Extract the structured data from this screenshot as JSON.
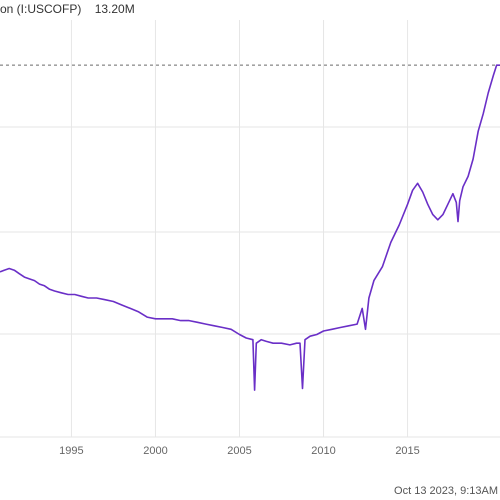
{
  "legend": {
    "series_label": "on (I:USCOFP)",
    "last_value": "13.20M"
  },
  "timestamp": "Oct 13 2023, 9:13AM",
  "colors": {
    "series": "#6a2fc7",
    "grid": "#e6e6e6",
    "reference_line": "#6a6a6a",
    "axis_text": "#666666"
  },
  "chart_data": {
    "type": "line",
    "title": "",
    "xlabel": "",
    "ylabel": "",
    "x_ticks": [
      "1995",
      "2000",
      "2005",
      "2010",
      "2015"
    ],
    "xlim": [
      1990.75,
      2020.5
    ],
    "ylim": [
      2.5,
      14.5
    ],
    "reference_line_value": 13.2,
    "grid": true,
    "series": [
      {
        "x": [
          1990.75,
          1991.0,
          1991.3,
          1991.6,
          1991.9,
          1992.2,
          1992.5,
          1992.8,
          1993.1,
          1993.4,
          1993.7,
          1994.0,
          1994.4,
          1994.8,
          1995.2,
          1995.6,
          1996.0,
          1996.5,
          1997.0,
          1997.5,
          1998.0,
          1998.5,
          1999.0,
          1999.5,
          2000.0,
          2000.5,
          2001.0,
          2001.5,
          2002.0,
          2002.5,
          2003.0,
          2003.5,
          2004.0,
          2004.5,
          2005.0,
          2005.4,
          2005.8,
          2005.9,
          2006.0,
          2006.3,
          2006.6,
          2007.0,
          2007.5,
          2008.0,
          2008.4,
          2008.6,
          2008.75,
          2008.9,
          2009.2,
          2009.6,
          2010.0,
          2010.5,
          2011.0,
          2011.5,
          2012.0,
          2012.3,
          2012.5,
          2012.7,
          2013.0,
          2013.5,
          2014.0,
          2014.5,
          2015.0,
          2015.3,
          2015.6,
          2015.9,
          2016.2,
          2016.5,
          2016.8,
          2017.1,
          2017.4,
          2017.7,
          2017.9,
          2018.0,
          2018.1,
          2018.3,
          2018.6,
          2018.9,
          2019.2,
          2019.5,
          2019.8,
          2020.1,
          2020.3,
          2020.5
        ],
        "y": [
          7.25,
          7.3,
          7.35,
          7.3,
          7.2,
          7.1,
          7.05,
          7.0,
          6.9,
          6.85,
          6.75,
          6.7,
          6.65,
          6.6,
          6.6,
          6.55,
          6.5,
          6.5,
          6.45,
          6.4,
          6.3,
          6.2,
          6.1,
          5.95,
          5.9,
          5.9,
          5.9,
          5.85,
          5.85,
          5.8,
          5.75,
          5.7,
          5.65,
          5.6,
          5.45,
          5.35,
          5.3,
          3.85,
          5.2,
          5.3,
          5.25,
          5.2,
          5.2,
          5.15,
          5.2,
          5.2,
          3.9,
          5.3,
          5.4,
          5.45,
          5.55,
          5.6,
          5.65,
          5.7,
          5.75,
          6.2,
          5.6,
          6.5,
          7.0,
          7.4,
          8.1,
          8.6,
          9.2,
          9.6,
          9.8,
          9.55,
          9.2,
          8.9,
          8.75,
          8.9,
          9.2,
          9.5,
          9.25,
          8.7,
          9.3,
          9.7,
          10.0,
          10.5,
          11.3,
          11.8,
          12.4,
          12.9,
          13.2,
          13.2
        ]
      }
    ]
  }
}
